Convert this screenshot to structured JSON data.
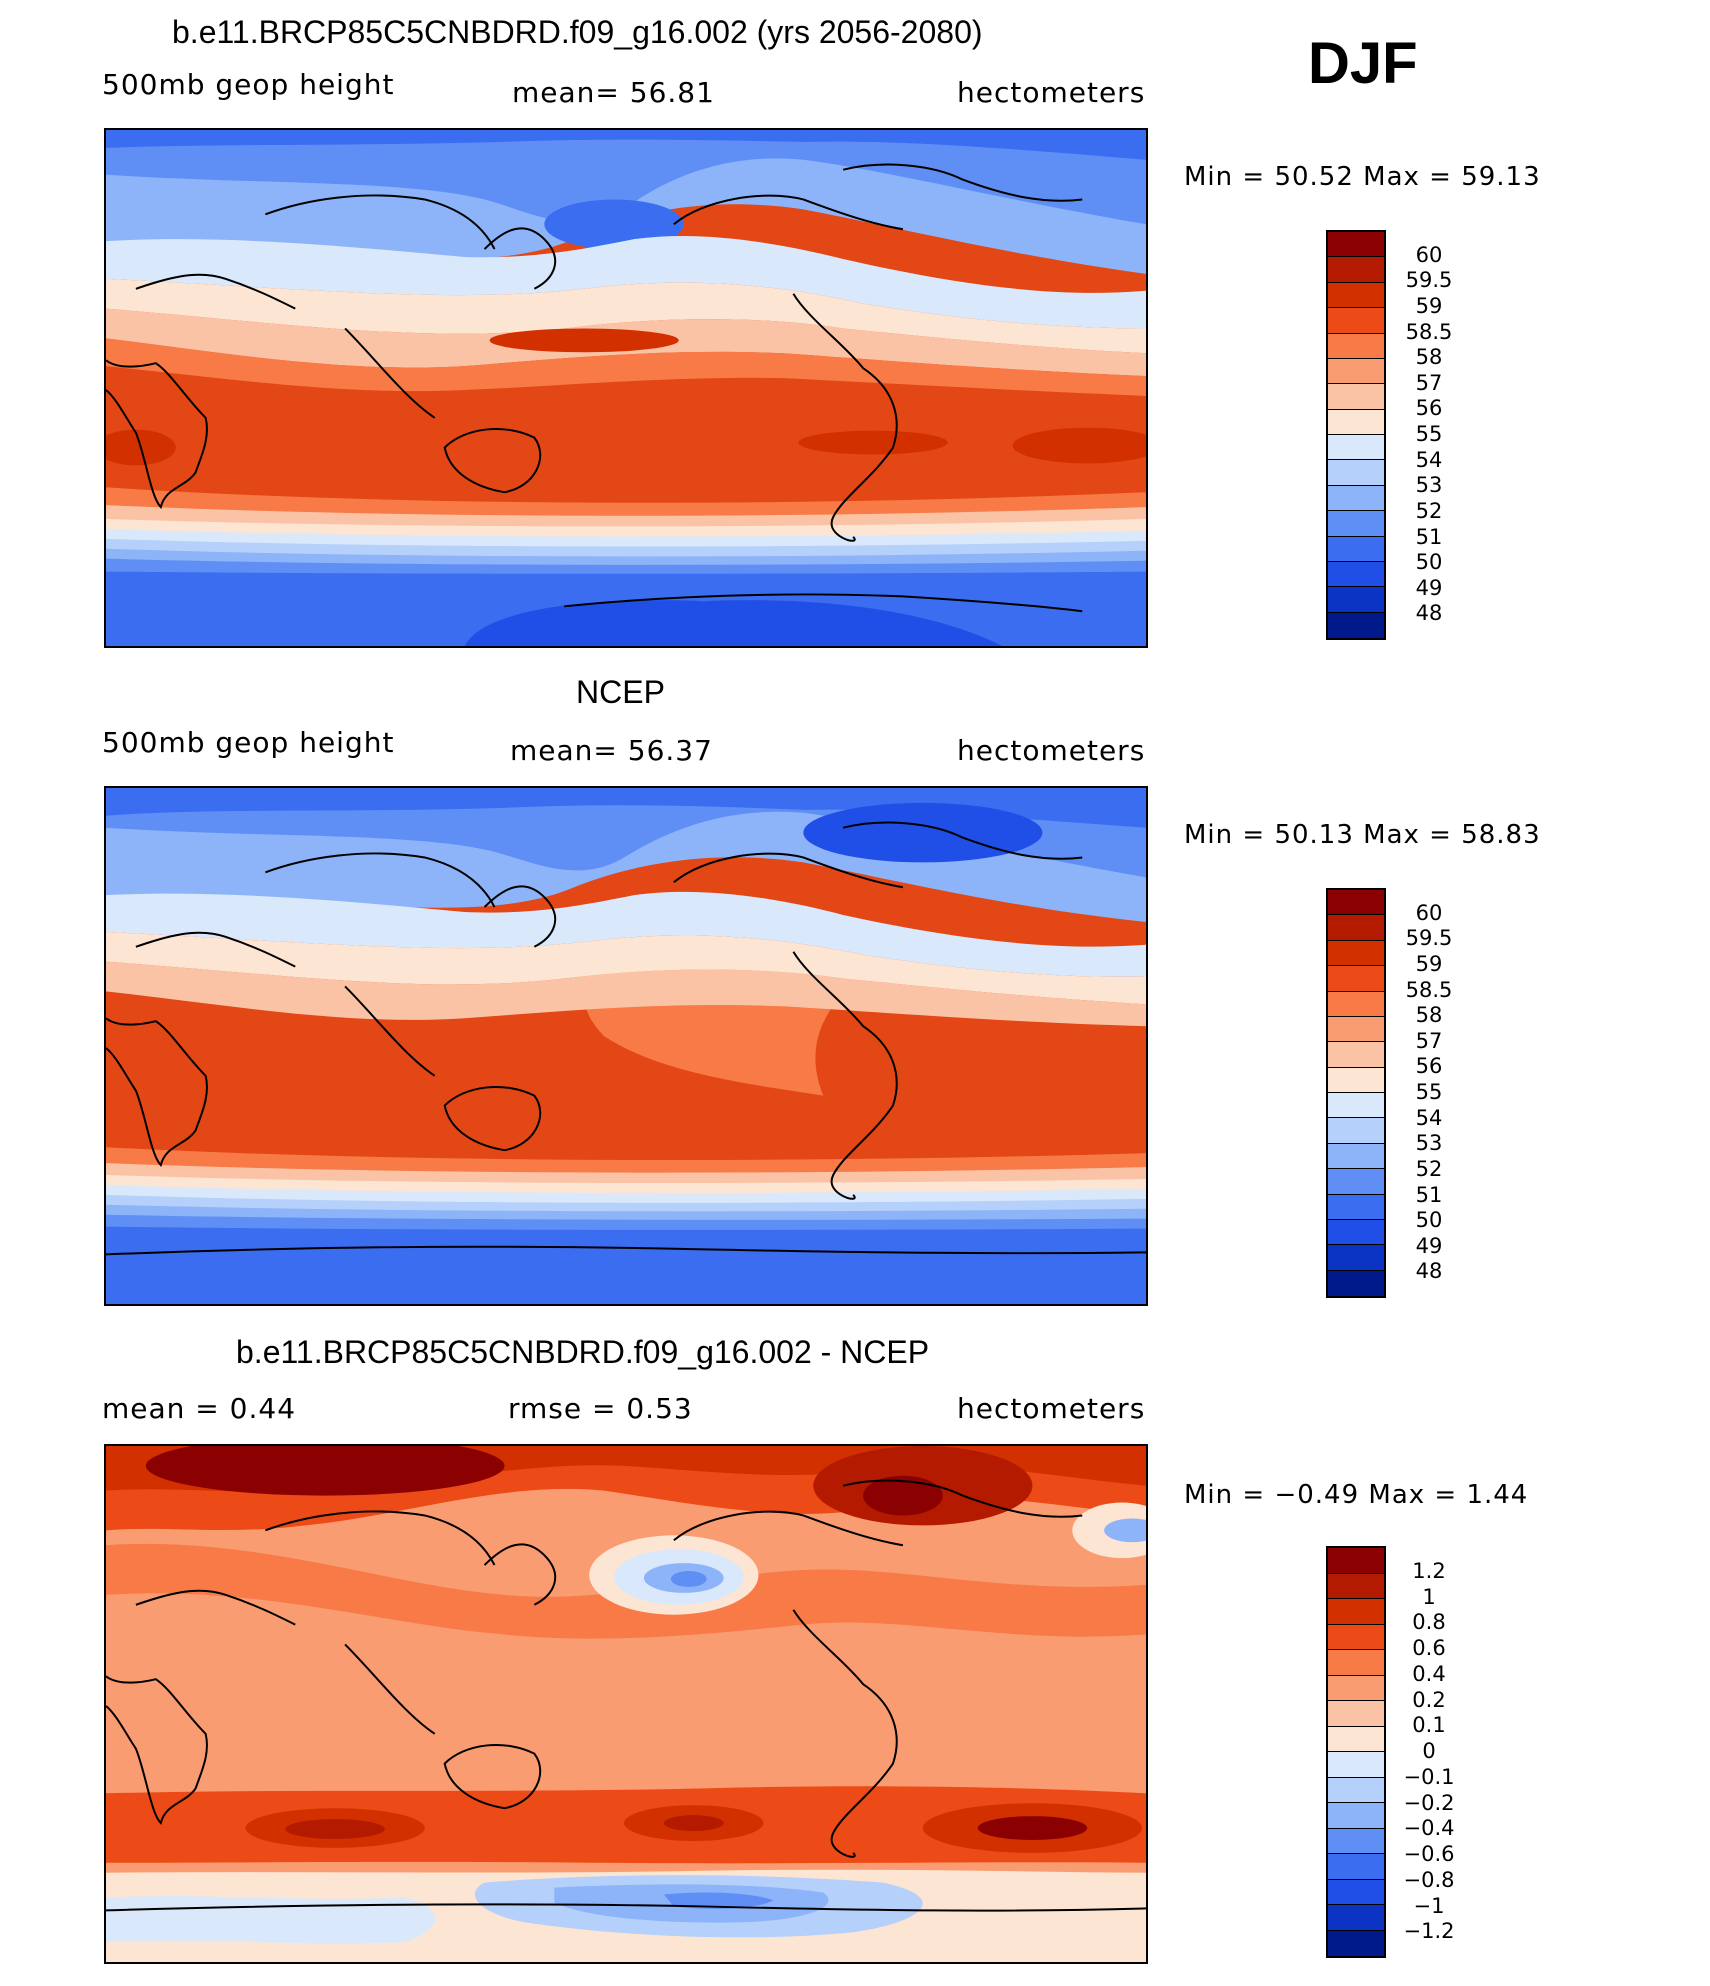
{
  "season": "DJF",
  "panels": [
    {
      "id": "model",
      "title": "b.e11.BRCP85C5CNBDRD.f09_g16.002 (yrs 2056-2080)",
      "left_label": "500mb  geop  height",
      "mean_text": "mean=   56.81",
      "rmse_text": "",
      "units": "hectometers",
      "minmax_text": "Min  =    50.52  Max  =    59.13",
      "colorbar": {
        "colors": [
          "#8b0000",
          "#b31a00",
          "#d33000",
          "#ec4a17",
          "#f77a47",
          "#fa9c71",
          "#fbc3a6",
          "#fde5d3",
          "#d9e8fb",
          "#b5d0fa",
          "#8db4f8",
          "#5f8ff5",
          "#3b6df0",
          "#1f4fe6",
          "#0b34c4",
          "#001a8c"
        ],
        "labels": [
          "60",
          "59.5",
          "59",
          "58.5",
          "58",
          "57",
          "56",
          "55",
          "54",
          "53",
          "52",
          "51",
          "50",
          "49",
          "48"
        ]
      }
    },
    {
      "id": "obs",
      "title": "NCEP",
      "left_label": "500mb  geop  height",
      "mean_text": "mean=   56.37",
      "rmse_text": "",
      "units": "hectometers",
      "minmax_text": "Min  =    50.13  Max  =    58.83",
      "colorbar": {
        "colors": [
          "#8b0000",
          "#b31a00",
          "#d33000",
          "#ec4a17",
          "#f77a47",
          "#fa9c71",
          "#fbc3a6",
          "#fde5d3",
          "#d9e8fb",
          "#b5d0fa",
          "#8db4f8",
          "#5f8ff5",
          "#3b6df0",
          "#1f4fe6",
          "#0b34c4",
          "#001a8c"
        ],
        "labels": [
          "60",
          "59.5",
          "59",
          "58.5",
          "58",
          "57",
          "56",
          "55",
          "54",
          "53",
          "52",
          "51",
          "50",
          "49",
          "48"
        ]
      }
    },
    {
      "id": "diff",
      "title": "b.e11.BRCP85C5CNBDRD.f09_g16.002 - NCEP",
      "left_label": "mean  =     0.44",
      "mean_text": "",
      "rmse_text": "rmse  =     0.53",
      "units": "hectometers",
      "minmax_text": "Min  =    −0.49  Max  =     1.44",
      "colorbar": {
        "colors": [
          "#8b0000",
          "#b31a00",
          "#d33000",
          "#ec4a17",
          "#f77a47",
          "#fa9c71",
          "#fbc3a6",
          "#fde5d3",
          "#d9e8fb",
          "#b5d0fa",
          "#8db4f8",
          "#5f8ff5",
          "#3b6df0",
          "#1f4fe6",
          "#0b34c4",
          "#001a8c"
        ],
        "labels": [
          "1.2",
          "1",
          "0.8",
          "0.6",
          "0.4",
          "0.2",
          "0.1",
          "0",
          "−0.1",
          "−0.2",
          "−0.4",
          "−0.6",
          "−0.8",
          "−1",
          "−1.2"
        ]
      }
    }
  ]
}
